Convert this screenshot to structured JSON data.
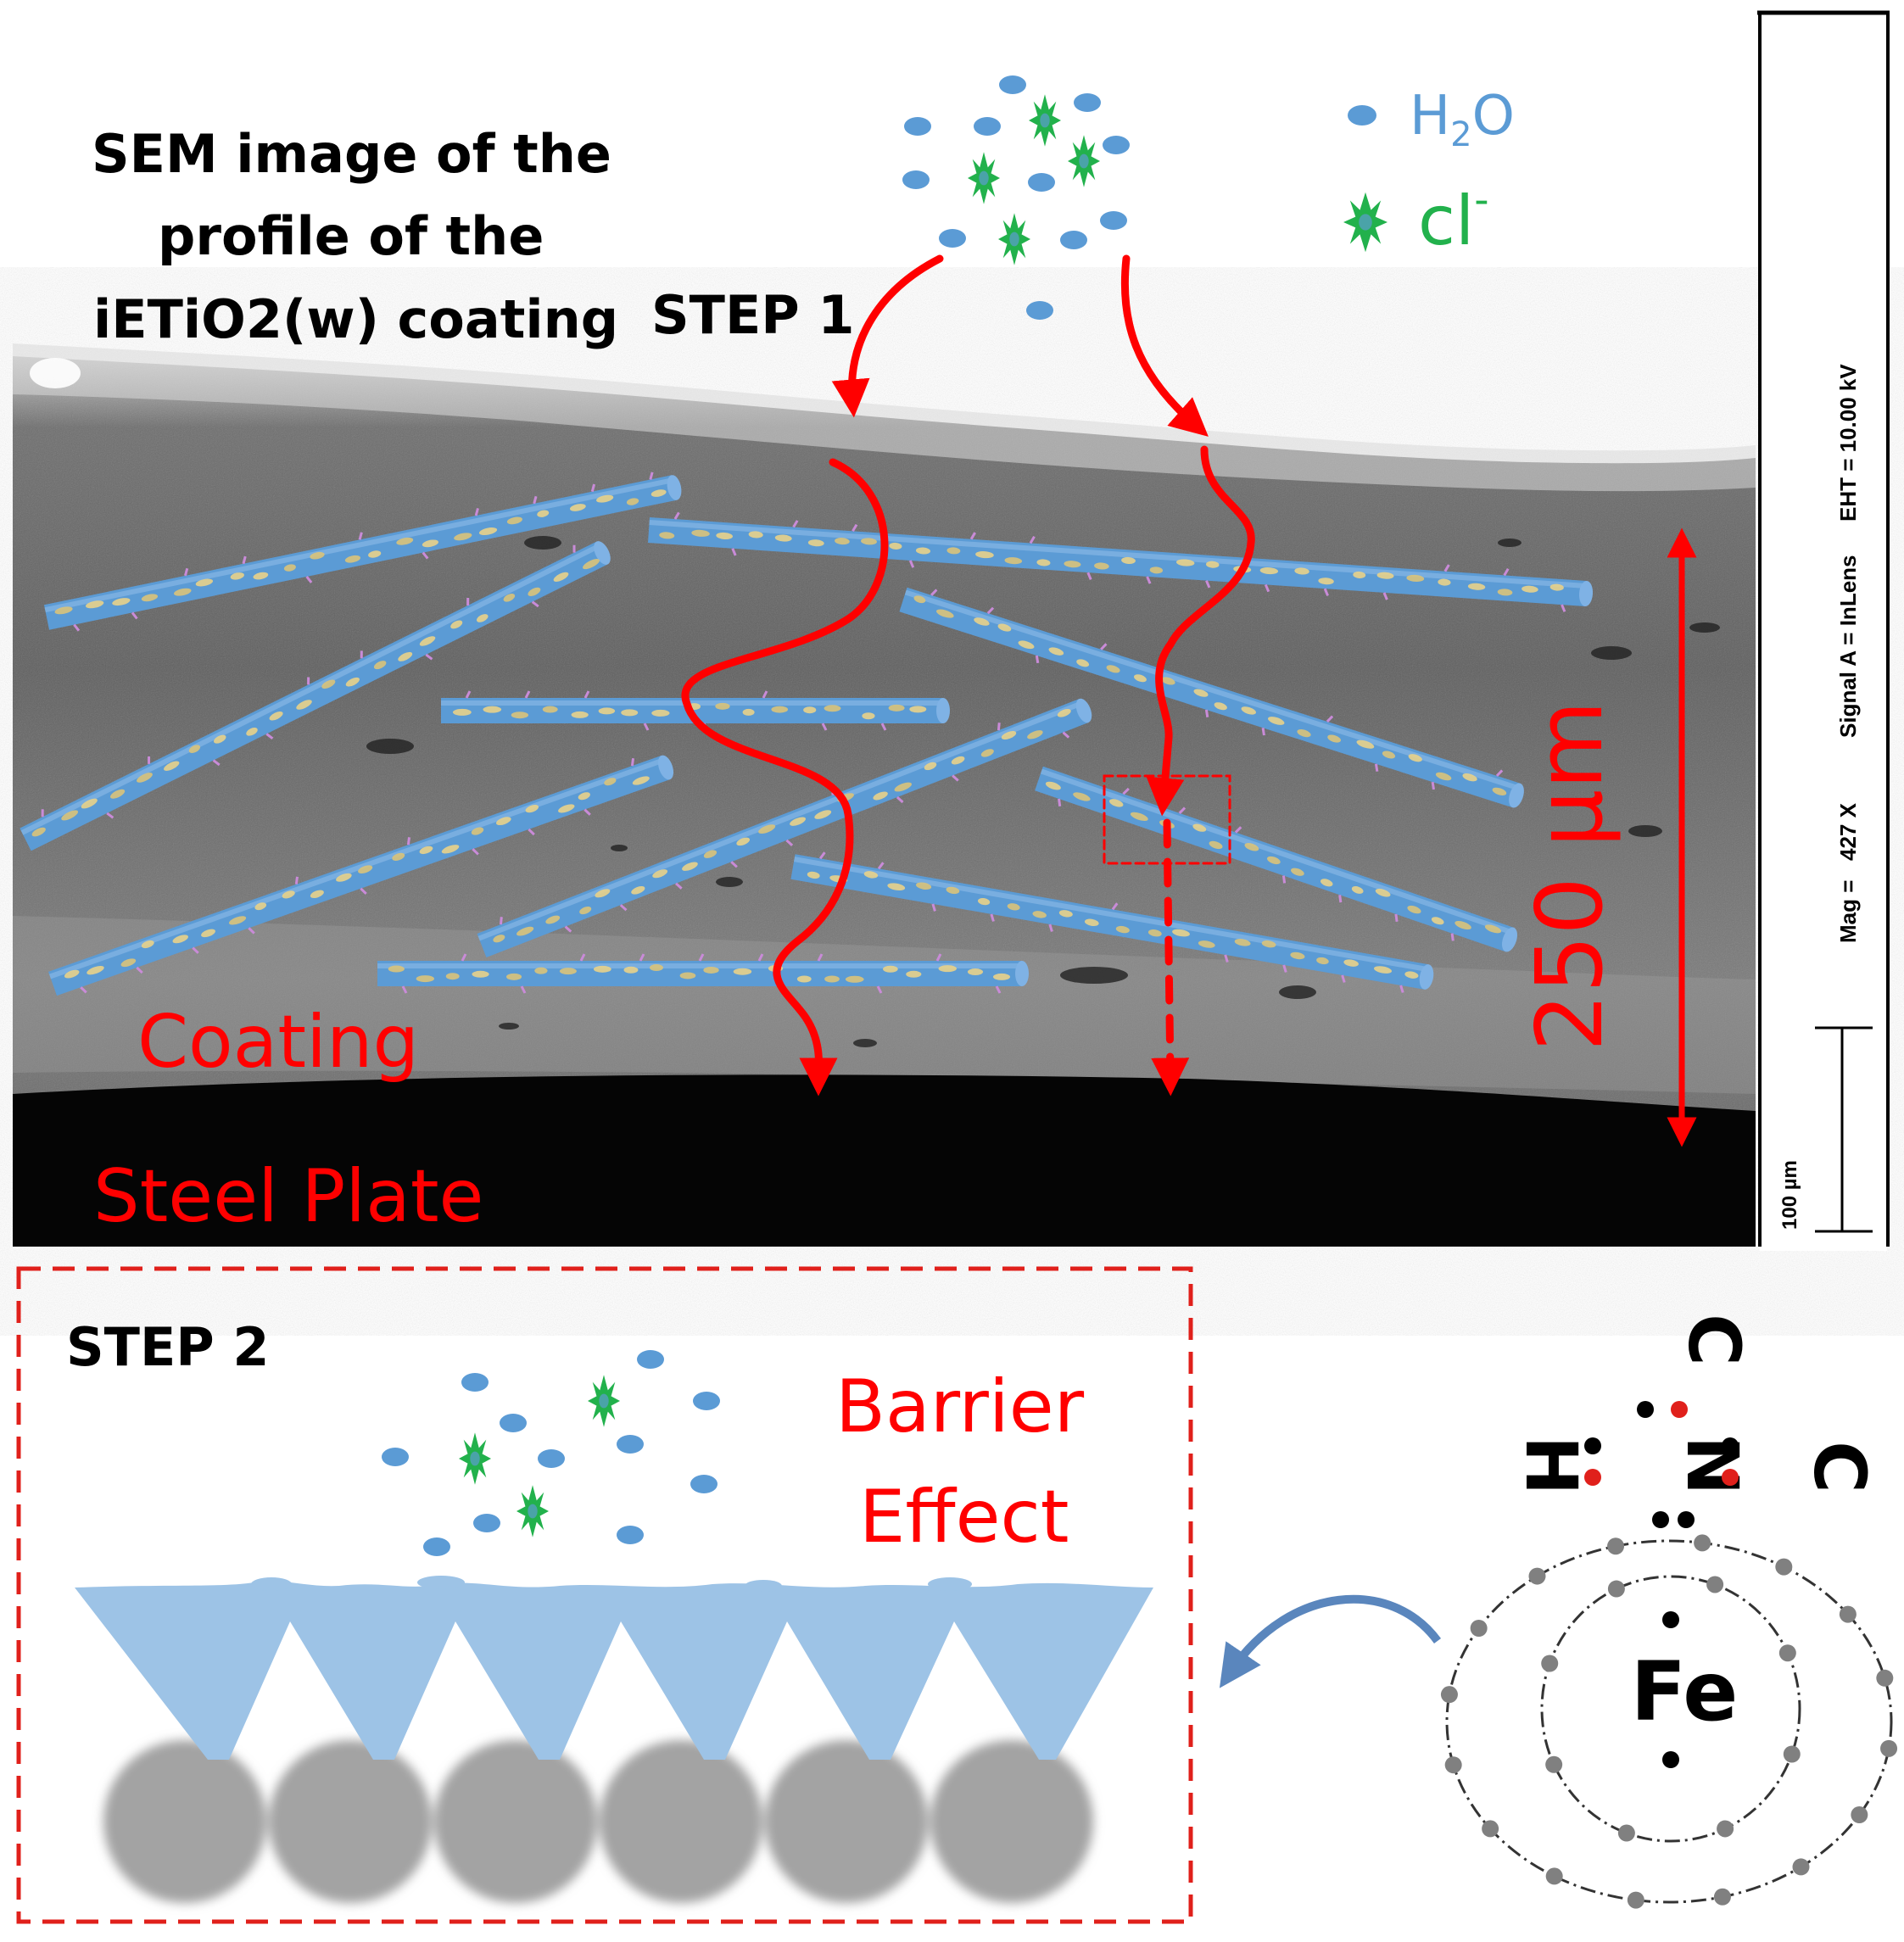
{
  "title_lines": [
    "SEM image of the",
    "profile of the",
    "iETiO2(w) coating"
  ],
  "step1": "STEP 1",
  "step2": "STEP 2",
  "legend": {
    "h2o": "H",
    "h2o_sub": "2",
    "h2o_tail": "O",
    "cl": "cl",
    "cl_sup": "-"
  },
  "thickness": "250 µm",
  "coating": "Coating",
  "steel_plate": "Steel Plate",
  "barrier_lines": [
    "Barrier",
    "Effect"
  ],
  "sem_info": {
    "eht": "EHT = 10.00 kV",
    "signal": "Signal A = InLens",
    "mag_value": "427 X",
    "mag_label": "Mag =",
    "scale": "100 µm"
  },
  "complex": {
    "metal": "Fe",
    "h": "H",
    "n": "N",
    "c_top": "C",
    "c_right": "C"
  },
  "colors": {
    "arrow_red": "#ff0000",
    "rod_blue": "#5b9bd5",
    "water_blue": "#5b9bd5",
    "chloride_green": "#22b14c",
    "barrier_blue": "#9dc3e6",
    "particle_gray": "#a6a6a6"
  }
}
